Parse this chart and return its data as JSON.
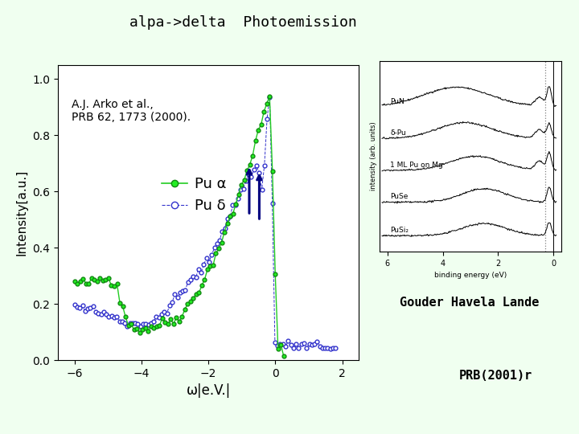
{
  "title": "alpa->delta  Photoemission",
  "title_fontsize": 14,
  "background_top": "#f0fff0",
  "background_bottom": "#90ee90",
  "xlabel": "ω|e.V.|",
  "ylabel": "Intensity[a.u.]",
  "xlim": [
    -6.5,
    2.5
  ],
  "ylim": [
    0,
    1.05
  ],
  "xticks": [
    -6,
    -4,
    -2,
    0,
    2
  ],
  "yticks": [
    0,
    0.2,
    0.4,
    0.6,
    0.8,
    1
  ],
  "annotation_text": "A.J. Arko et al.,\nPRB 62, 1773 (2000).",
  "legend_alpha": "Pu α",
  "legend_delta": "Pu δ",
  "credit1": "Gouder Havela Lande",
  "credit2": "PRB(2001)r",
  "spectra_labels": [
    "PuN",
    "δ-Pu",
    "1 ML Pu on Mg",
    "PuSe",
    "PuSi₂"
  ]
}
